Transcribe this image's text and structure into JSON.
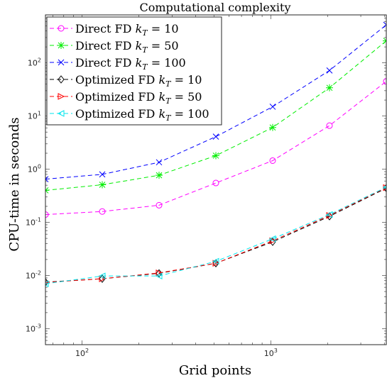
{
  "chart_data": {
    "type": "line",
    "title": "Computational complexity",
    "xlabel": "Grid points",
    "ylabel": "CPU-time in seconds",
    "xscale": "log",
    "yscale": "log",
    "xlim": [
      64,
      4096
    ],
    "ylim": [
      0.0005,
      800
    ],
    "grid": false,
    "legend_position": "top-left",
    "x_ticks": [
      {
        "value": 100,
        "base": "10",
        "exp": "2"
      },
      {
        "value": 1000,
        "base": "10",
        "exp": "3"
      }
    ],
    "y_ticks": [
      {
        "value": 0.001,
        "base": "10",
        "exp": "-3"
      },
      {
        "value": 0.01,
        "base": "10",
        "exp": "-2"
      },
      {
        "value": 0.1,
        "base": "10",
        "exp": "-1"
      },
      {
        "value": 1,
        "base": "10",
        "exp": "0"
      },
      {
        "value": 10,
        "base": "10",
        "exp": "1"
      },
      {
        "value": 100,
        "base": "10",
        "exp": "2"
      }
    ],
    "x": [
      64,
      128,
      256,
      512,
      1024,
      2048,
      4096
    ],
    "series": [
      {
        "name_text": "Direct FD ",
        "name_var": "k",
        "name_sub": "T",
        "name_tail": " = 10",
        "color": "#ff00ff",
        "marker": "circle",
        "values": [
          0.14,
          0.16,
          0.21,
          0.55,
          1.45,
          6.6,
          45
        ]
      },
      {
        "name_text": "Direct FD ",
        "name_var": "k",
        "name_sub": "T",
        "name_tail": " = 50",
        "color": "#00ee00",
        "marker": "star",
        "values": [
          0.4,
          0.51,
          0.77,
          1.8,
          6.1,
          34,
          260
        ]
      },
      {
        "name_text": "Direct FD ",
        "name_var": "k",
        "name_sub": "T",
        "name_tail": " = 100",
        "color": "#0000ff",
        "marker": "x",
        "values": [
          0.65,
          0.8,
          1.35,
          4.1,
          15,
          72,
          520
        ]
      },
      {
        "name_text": "Optimized FD ",
        "name_var": "k",
        "name_sub": "T",
        "name_tail": " = 10",
        "color": "#000000",
        "marker": "diamond",
        "values": [
          0.0075,
          0.0087,
          0.011,
          0.017,
          0.043,
          0.13,
          0.44
        ]
      },
      {
        "name_text": "Optimized FD ",
        "name_var": "k",
        "name_sub": "T",
        "name_tail": " = 50",
        "color": "#ff0000",
        "marker": "triangle-right",
        "values": [
          0.0074,
          0.0087,
          0.0112,
          0.017,
          0.045,
          0.135,
          0.45
        ]
      },
      {
        "name_text": "Optimized FD ",
        "name_var": "k",
        "name_sub": "T",
        "name_tail": " = 100",
        "color": "#00e5ee",
        "marker": "triangle-left",
        "values": [
          0.007,
          0.0098,
          0.0098,
          0.0185,
          0.049,
          0.14,
          0.46
        ]
      }
    ]
  }
}
